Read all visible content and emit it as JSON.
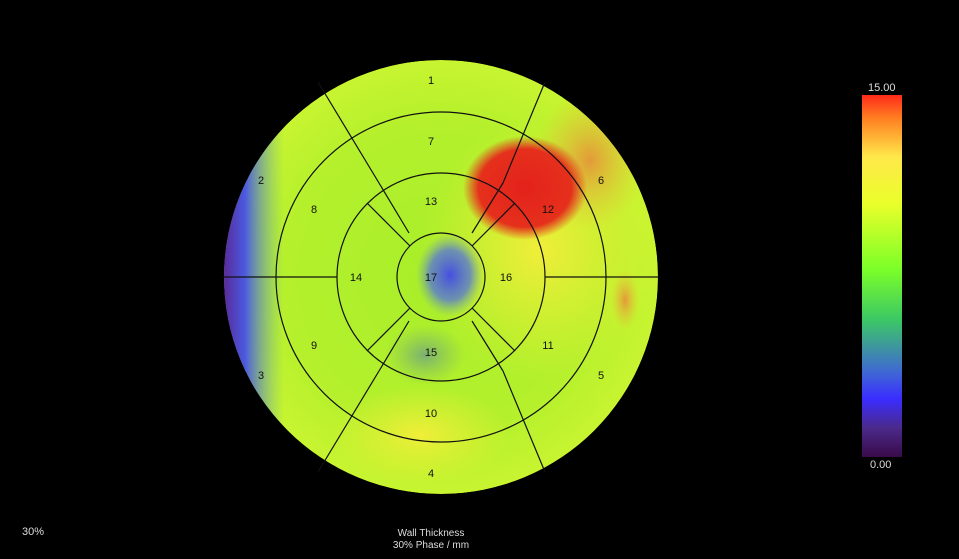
{
  "scale": {
    "max_label": "15.00",
    "min_label": "0.00"
  },
  "footer": {
    "phase_percent": "30%",
    "title": "Wall Thickness",
    "subtitle": "30% Phase / mm"
  },
  "segments": {
    "s1": "1",
    "s2": "2",
    "s3": "3",
    "s4": "4",
    "s5": "5",
    "s6": "6",
    "s7": "7",
    "s8": "8",
    "s9": "9",
    "s10": "10",
    "s11": "11",
    "s12": "12",
    "s13": "13",
    "s14": "14",
    "s15": "15",
    "s16": "16",
    "s17": "17"
  },
  "colors": {
    "background": "#000000",
    "base_fill": "#b6f02a",
    "thick_region": "#e8281e",
    "thin_region": "#4a58e0",
    "lines": "#111111"
  }
}
